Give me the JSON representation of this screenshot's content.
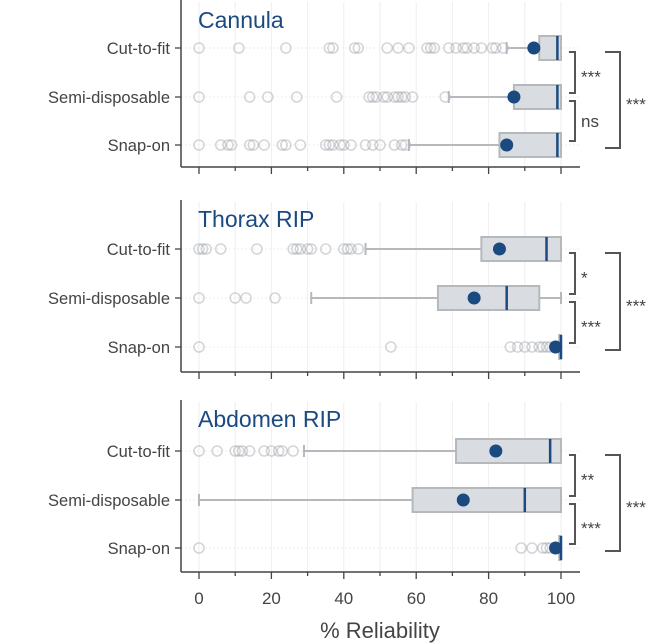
{
  "chart_data": {
    "type": "box",
    "xlabel": "% Reliability",
    "xlim": [
      -5,
      105
    ],
    "xticks": [
      "0",
      "20",
      "40",
      "60",
      "80",
      "100"
    ],
    "xtick_values": [
      0,
      20,
      40,
      60,
      80,
      100
    ],
    "categories": [
      "Cut-to-fit",
      "Semi-disposable",
      "Snap-on"
    ],
    "colors": {
      "mean": "#1a4a80",
      "median": "#1a4a80",
      "box": "#d9dce0",
      "box_edge": "#b5b8bc",
      "bracket": "#555555"
    },
    "panels": [
      {
        "title": "Cannula",
        "boxes": [
          {
            "category": "Cut-to-fit",
            "whislo": 85,
            "q1": 94,
            "median": 99,
            "q3": 100,
            "whishi": 100,
            "mean": 92.5,
            "outliers": [
              0,
              11,
              24,
              36,
              37,
              43,
              44,
              52,
              55,
              58,
              63,
              64,
              65,
              69,
              71,
              73,
              74,
              76,
              78,
              81,
              82,
              84
            ]
          },
          {
            "category": "Semi-disposable",
            "whislo": 69,
            "q1": 87,
            "median": 99,
            "q3": 100,
            "whishi": 100,
            "mean": 87,
            "outliers": [
              0,
              14,
              19,
              27,
              38,
              47,
              48,
              49,
              51,
              52,
              54,
              55,
              56,
              57,
              59,
              68
            ]
          },
          {
            "category": "Snap-on",
            "whislo": 58,
            "q1": 83,
            "median": 99,
            "q3": 100,
            "whishi": 100,
            "mean": 85,
            "outliers": [
              0,
              6,
              8,
              9,
              14,
              15,
              18,
              23,
              24,
              28,
              35,
              36,
              37,
              39,
              40,
              42,
              46,
              48,
              50,
              54,
              56,
              57
            ]
          }
        ],
        "comparisons": [
          {
            "pair": [
              0,
              1
            ],
            "label": "***"
          },
          {
            "pair": [
              1,
              2
            ],
            "label": "ns"
          },
          {
            "pair": [
              0,
              2
            ],
            "label": "***"
          }
        ]
      },
      {
        "title": "Thorax RIP",
        "boxes": [
          {
            "category": "Cut-to-fit",
            "whislo": 46,
            "q1": 78,
            "median": 96,
            "q3": 100,
            "whishi": 100,
            "mean": 83,
            "outliers": [
              0,
              1,
              2,
              6,
              16,
              26,
              27,
              28,
              30,
              31,
              35,
              40,
              41,
              42,
              44
            ]
          },
          {
            "category": "Semi-disposable",
            "whislo": 31,
            "q1": 66,
            "median": 85,
            "q3": 94,
            "whishi": 100,
            "mean": 76,
            "outliers": [
              0,
              10,
              13,
              21
            ]
          },
          {
            "category": "Snap-on",
            "whislo": 99,
            "q1": 99.5,
            "median": 100,
            "q3": 100,
            "whishi": 100,
            "mean": 98.5,
            "outliers": [
              0,
              53,
              86,
              88,
              90,
              92,
              94,
              95,
              96,
              97
            ]
          }
        ],
        "comparisons": [
          {
            "pair": [
              0,
              1
            ],
            "label": "*"
          },
          {
            "pair": [
              1,
              2
            ],
            "label": "***"
          },
          {
            "pair": [
              0,
              2
            ],
            "label": "***"
          }
        ]
      },
      {
        "title": "Abdomen RIP",
        "boxes": [
          {
            "category": "Cut-to-fit",
            "whislo": 29,
            "q1": 71,
            "median": 97,
            "q3": 100,
            "whishi": 100,
            "mean": 82,
            "outliers": [
              0,
              5,
              10,
              11,
              12,
              14,
              18,
              20,
              22,
              23,
              26
            ]
          },
          {
            "category": "Semi-disposable",
            "whislo": 0,
            "q1": 59,
            "median": 90,
            "q3": 100,
            "whishi": 100,
            "mean": 73,
            "outliers": []
          },
          {
            "category": "Snap-on",
            "whislo": 99,
            "q1": 99.5,
            "median": 100,
            "q3": 100,
            "whishi": 100,
            "mean": 98.5,
            "outliers": [
              0,
              89,
              92,
              95,
              96,
              97
            ]
          }
        ],
        "comparisons": [
          {
            "pair": [
              0,
              1
            ],
            "label": "**"
          },
          {
            "pair": [
              1,
              2
            ],
            "label": "***"
          },
          {
            "pair": [
              0,
              2
            ],
            "label": "***"
          }
        ]
      }
    ]
  }
}
